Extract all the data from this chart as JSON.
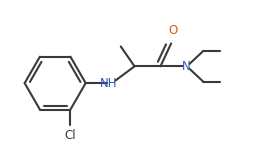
{
  "bg_color": "#ffffff",
  "bond_color": "#3a3a3a",
  "o_color": "#e05a00",
  "n_color": "#3355bb",
  "cl_color": "#3a3a3a",
  "line_width": 1.5,
  "fig_width": 2.66,
  "fig_height": 1.54,
  "dpi": 100,
  "xlim": [
    0.0,
    8.5
  ],
  "ylim": [
    -1.5,
    3.5
  ]
}
